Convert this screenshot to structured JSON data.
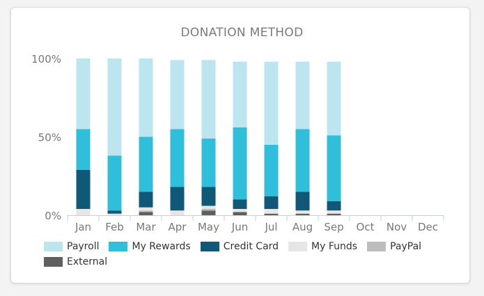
{
  "chart_data": {
    "type": "bar",
    "stacked": true,
    "title": "DONATION METHOD",
    "categories": [
      "Jan",
      "Feb",
      "Mar",
      "Apr",
      "May",
      "Jun",
      "Jul",
      "Aug",
      "Sep",
      "Oct",
      "Nov",
      "Dec"
    ],
    "ylim": [
      0,
      100
    ],
    "yticks": [
      "0%",
      "50%",
      "100%"
    ],
    "legend_position": "bottom",
    "series": [
      {
        "name": "External",
        "color": "#5f5f5f",
        "values": [
          0,
          0,
          2,
          0,
          3,
          2,
          1,
          1,
          1,
          null,
          null,
          null
        ]
      },
      {
        "name": "PayPal",
        "color": "#bdbdbd",
        "values": [
          0,
          0,
          1,
          0,
          1,
          0,
          0,
          0,
          0,
          null,
          null,
          null
        ]
      },
      {
        "name": "My Funds",
        "color": "#e6e6e6",
        "values": [
          4,
          1,
          2,
          3,
          2,
          2,
          3,
          2,
          2,
          null,
          null,
          null
        ]
      },
      {
        "name": "Credit Card",
        "color": "#0f5877",
        "values": [
          25,
          2,
          10,
          15,
          12,
          6,
          8,
          12,
          6,
          null,
          null,
          null
        ]
      },
      {
        "name": "My Rewards",
        "color": "#2fbfdb",
        "values": [
          26,
          35,
          35,
          37,
          31,
          46,
          33,
          40,
          42,
          null,
          null,
          null
        ]
      },
      {
        "name": "Payroll",
        "color": "#bce5ef",
        "values": [
          45,
          62,
          50,
          44,
          50,
          42,
          53,
          43,
          47,
          null,
          null,
          null
        ]
      }
    ]
  }
}
